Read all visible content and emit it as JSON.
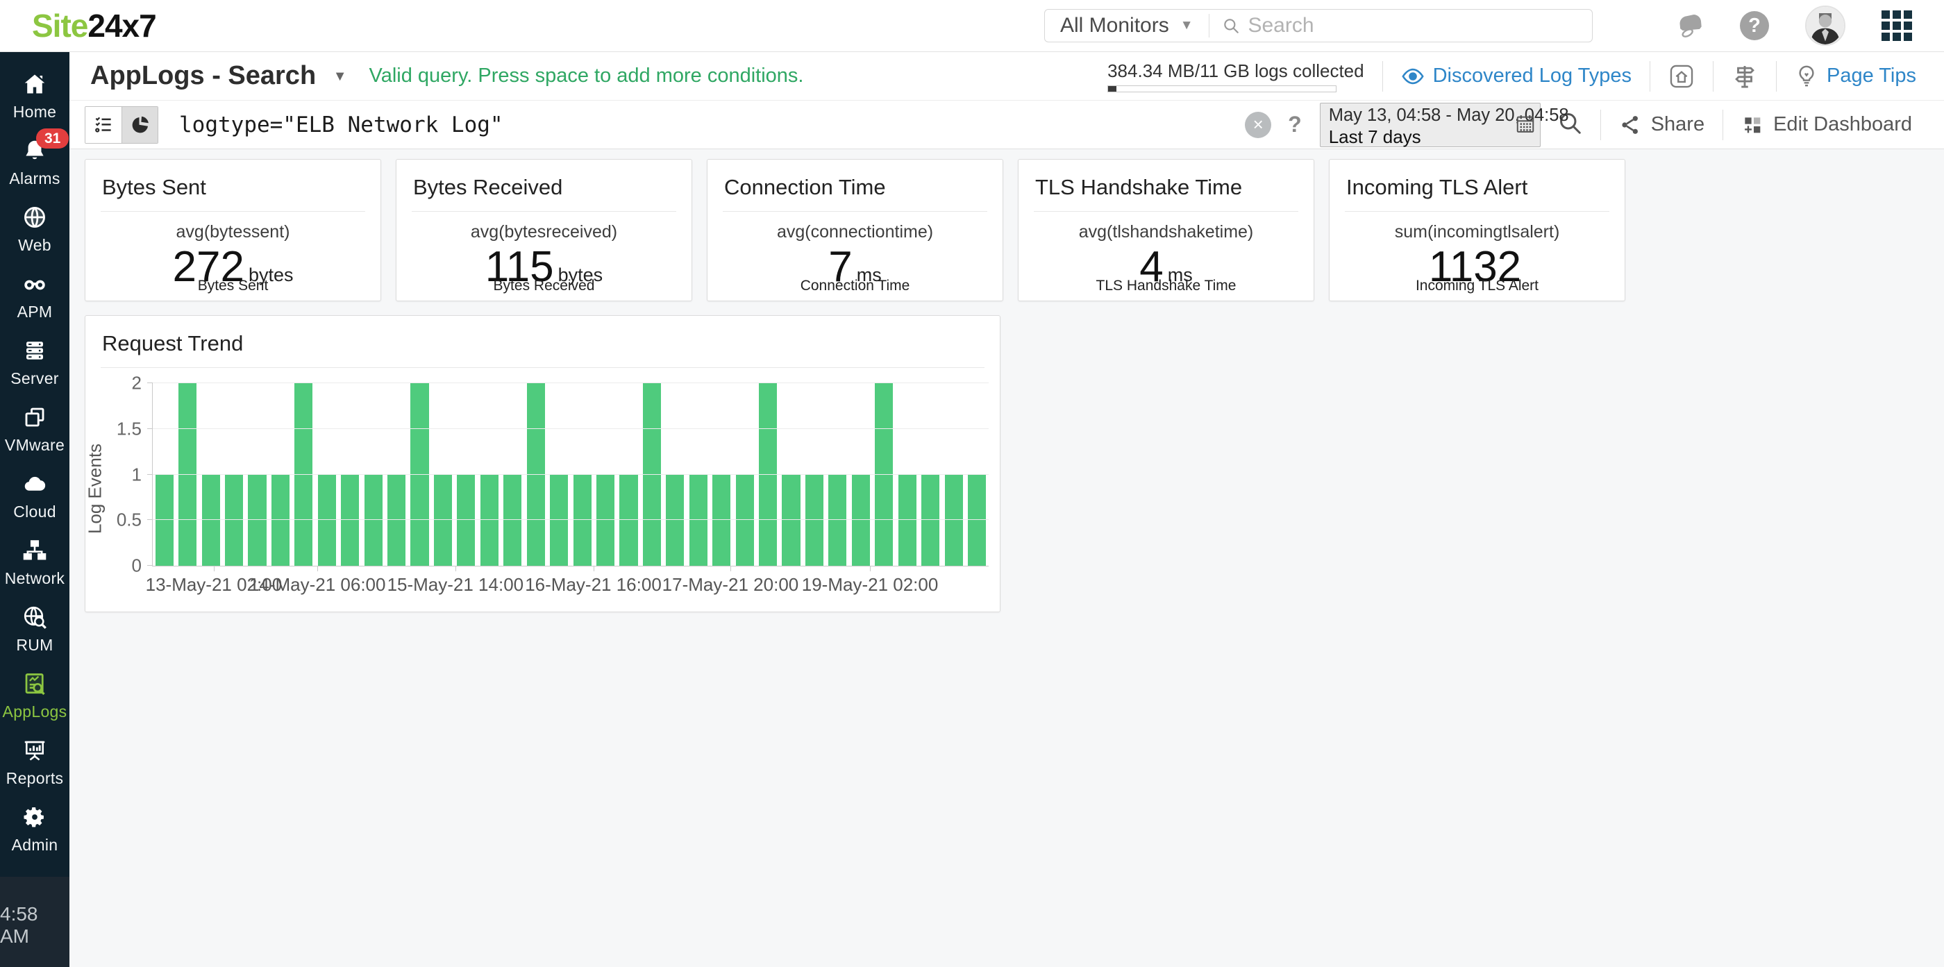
{
  "brand": {
    "part1": "Site",
    "part2": "24x7"
  },
  "topbar": {
    "monitor_filter": "All Monitors",
    "search_placeholder": "Search",
    "help_glyph": "?"
  },
  "sidebar": {
    "items": [
      {
        "id": "home",
        "icon": "home",
        "label": "Home"
      },
      {
        "id": "alarms",
        "icon": "bell",
        "label": "Alarms",
        "badge": "31"
      },
      {
        "id": "web",
        "icon": "globe",
        "label": "Web"
      },
      {
        "id": "apm",
        "icon": "binoculars",
        "label": "APM"
      },
      {
        "id": "server",
        "icon": "server",
        "label": "Server"
      },
      {
        "id": "vmware",
        "icon": "vmware",
        "label": "VMware"
      },
      {
        "id": "cloud",
        "icon": "cloud",
        "label": "Cloud"
      },
      {
        "id": "network",
        "icon": "network",
        "label": "Network"
      },
      {
        "id": "rum",
        "icon": "rum",
        "label": "RUM"
      },
      {
        "id": "applogs",
        "icon": "applogs",
        "label": "AppLogs",
        "active": true
      },
      {
        "id": "reports",
        "icon": "reports",
        "label": "Reports"
      },
      {
        "id": "admin",
        "icon": "gear",
        "label": "Admin"
      }
    ],
    "time": "4:58 AM"
  },
  "page_header": {
    "title": "AppLogs - Search",
    "hint": "Valid query. Press space to add more conditions.",
    "usage": {
      "text": "384.34 MB/11 GB logs collected",
      "percent": 3.5
    },
    "discovered_link": "Discovered Log Types",
    "page_tips_link": "Page Tips"
  },
  "query_bar": {
    "query": "logtype=\"ELB Network Log\"",
    "clear_glyph": "×",
    "help_glyph": "?",
    "date_range": "May 13, 04:58 - May 20, 04:58",
    "date_preset": "Last 7 days",
    "share_label": "Share",
    "edit_dashboard_label": "Edit Dashboard"
  },
  "metric_cards": [
    {
      "title": "Bytes Sent",
      "agg": "avg(bytessent)",
      "value": "272",
      "unit": "bytes",
      "footer": "Bytes Sent"
    },
    {
      "title": "Bytes Received",
      "agg": "avg(bytesreceived)",
      "value": "115",
      "unit": "bytes",
      "footer": "Bytes Received"
    },
    {
      "title": "Connection Time",
      "agg": "avg(connectiontime)",
      "value": "7",
      "unit": "ms",
      "footer": "Connection Time"
    },
    {
      "title": "TLS Handshake Time",
      "agg": "avg(tlshandshaketime)",
      "value": "4",
      "unit": "ms",
      "footer": "TLS Handshake Time"
    },
    {
      "title": "Incoming TLS Alert",
      "agg": "sum(incomingtlsalert)",
      "value": "1132",
      "unit": "",
      "footer": "Incoming TLS Alert"
    }
  ],
  "chart_data": {
    "type": "bar",
    "title": "Request Trend",
    "xlabel": "",
    "ylabel": "Log Events",
    "ylim": [
      0,
      2
    ],
    "yticks": [
      0,
      0.5,
      1,
      1.5,
      2
    ],
    "grid": true,
    "bar_color": "#4fcb7d",
    "values": [
      1,
      2,
      1,
      1,
      1,
      1,
      2,
      1,
      1,
      1,
      1,
      2,
      1,
      1,
      1,
      1,
      2,
      1,
      1,
      1,
      1,
      2,
      1,
      1,
      1,
      1,
      2,
      1,
      1,
      1,
      1,
      2,
      1,
      1,
      1,
      1
    ],
    "x_ticks": [
      {
        "label": "13-May-21 02:00",
        "pos": 7.3
      },
      {
        "label": "14-May-21 06:00",
        "pos": 19.7
      },
      {
        "label": "15-May-21 14:00",
        "pos": 36.2
      },
      {
        "label": "16-May-21 16:00",
        "pos": 52.7
      },
      {
        "label": "17-May-21 20:00",
        "pos": 69.1
      },
      {
        "label": "19-May-21 02:00",
        "pos": 85.8
      }
    ]
  },
  "colors": {
    "brand_green": "#8cc641",
    "link_blue": "#2e86c8",
    "hint_green": "#2fa763",
    "sidebar_bg": "#0e212d",
    "badge_red": "#e23e3e",
    "bar_green": "#4fcb7d"
  }
}
